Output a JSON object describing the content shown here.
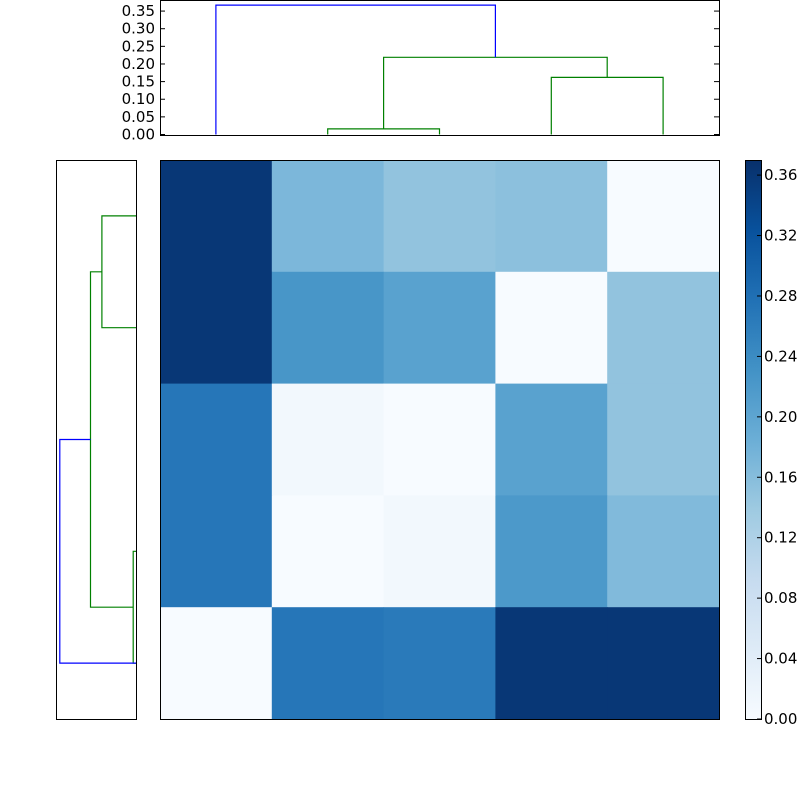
{
  "chart_data": [
    {
      "type": "dendrogram",
      "orientation": "top",
      "ylim": [
        0,
        0.38
      ],
      "ticks": [
        {
          "value": 0.0,
          "label": "0.00"
        },
        {
          "value": 0.05,
          "label": "0.05"
        },
        {
          "value": 0.1,
          "label": "0.10"
        },
        {
          "value": 0.15,
          "label": "0.15"
        },
        {
          "value": 0.2,
          "label": "0.20"
        },
        {
          "value": 0.25,
          "label": "0.25"
        },
        {
          "value": 0.3,
          "label": "0.30"
        },
        {
          "value": 0.35,
          "label": "0.35"
        }
      ],
      "leaf_count": 5,
      "links": [
        {
          "x": [
            1.5,
            1.5,
            2.5,
            2.5
          ],
          "y": [
            0.0,
            0.016,
            0.016,
            0.0
          ],
          "color": "#008000"
        },
        {
          "x": [
            3.5,
            3.5,
            4.5,
            4.5
          ],
          "y": [
            0.0,
            0.162,
            0.162,
            0.0
          ],
          "color": "#008000"
        },
        {
          "x": [
            2.0,
            2.0,
            4.0,
            4.0
          ],
          "y": [
            0.016,
            0.219,
            0.219,
            0.162
          ],
          "color": "#008000"
        },
        {
          "x": [
            0.5,
            0.5,
            3.0,
            3.0
          ],
          "y": [
            0.0,
            0.367,
            0.367,
            0.219
          ],
          "color": "#0000ff"
        }
      ]
    },
    {
      "type": "dendrogram",
      "orientation": "left",
      "xlim": [
        0,
        0.38
      ],
      "leaf_count": 5,
      "links": [
        {
          "y": [
            0.5,
            0.5,
            1.5,
            1.5
          ],
          "x": [
            0.0,
            0.0135,
            0.0135,
            0.0
          ],
          "color": "#008000"
        },
        {
          "y": [
            3.5,
            3.5,
            4.5,
            4.5
          ],
          "x": [
            0.0,
            0.162,
            0.162,
            0.0
          ],
          "color": "#008000"
        },
        {
          "y": [
            1.0,
            1.0,
            4.0,
            4.0
          ],
          "x": [
            0.0135,
            0.216,
            0.216,
            0.162
          ],
          "color": "#008000"
        },
        {
          "y": [
            0.5,
            0.5,
            2.5,
            2.5
          ],
          "x": [
            0.0,
            0.362,
            0.362,
            0.216
          ],
          "color": "#0000ff"
        }
      ]
    },
    {
      "type": "heatmap",
      "colormap": "Blues",
      "vmin": 0.0,
      "vmax": 0.37,
      "rows": 5,
      "cols": 5,
      "values": [
        [
          0.36,
          0.17,
          0.15,
          0.155,
          0.0
        ],
        [
          0.36,
          0.225,
          0.205,
          0.0,
          0.15
        ],
        [
          0.27,
          0.01,
          0.0,
          0.205,
          0.15
        ],
        [
          0.27,
          0.0,
          0.01,
          0.22,
          0.165
        ],
        [
          0.0,
          0.27,
          0.265,
          0.36,
          0.36
        ]
      ]
    },
    {
      "type": "colorbar",
      "colormap": "Blues",
      "range": [
        0.0,
        0.37
      ],
      "ticks": [
        {
          "value": 0.0,
          "label": "0.00"
        },
        {
          "value": 0.04,
          "label": "0.04"
        },
        {
          "value": 0.08,
          "label": "0.08"
        },
        {
          "value": 0.12,
          "label": "0.12"
        },
        {
          "value": 0.16,
          "label": "0.16"
        },
        {
          "value": 0.2,
          "label": "0.20"
        },
        {
          "value": 0.24,
          "label": "0.24"
        },
        {
          "value": 0.28,
          "label": "0.28"
        },
        {
          "value": 0.32,
          "label": "0.32"
        },
        {
          "value": 0.36,
          "label": "0.36"
        }
      ]
    }
  ],
  "colormap_stops": [
    "#f7fbff",
    "#deebf7",
    "#c6dbef",
    "#9ecae1",
    "#6baed6",
    "#4292c6",
    "#2171b5",
    "#08519c",
    "#08306b"
  ]
}
